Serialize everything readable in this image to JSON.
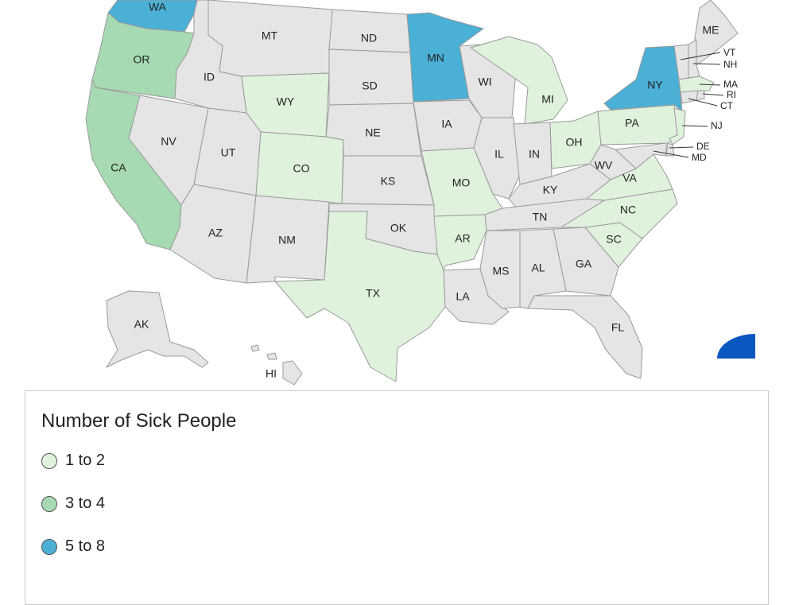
{
  "colors": {
    "none": "#e5e5e5",
    "low": "#dff3dc",
    "mid": "#a6dab2",
    "high": "#4bb0d5",
    "border": "#9a9a9a",
    "accent_widget": "#0a57c2"
  },
  "legend": {
    "title": "Number of Sick People",
    "items": [
      {
        "label": "1 to 2",
        "color": "#dff3dc"
      },
      {
        "label": "3 to 4",
        "color": "#a6dab2"
      },
      {
        "label": "5 to 8",
        "color": "#4bb0d5"
      }
    ]
  },
  "states": {
    "WA": {
      "label": "WA",
      "bin": "high"
    },
    "OR": {
      "label": "OR",
      "bin": "mid"
    },
    "CA": {
      "label": "CA",
      "bin": "mid"
    },
    "ID": {
      "label": "ID",
      "bin": "none"
    },
    "NV": {
      "label": "NV",
      "bin": "none"
    },
    "MT": {
      "label": "MT",
      "bin": "none"
    },
    "WY": {
      "label": "WY",
      "bin": "low"
    },
    "UT": {
      "label": "UT",
      "bin": "none"
    },
    "AZ": {
      "label": "AZ",
      "bin": "none"
    },
    "CO": {
      "label": "CO",
      "bin": "low"
    },
    "NM": {
      "label": "NM",
      "bin": "none"
    },
    "ND": {
      "label": "ND",
      "bin": "none"
    },
    "SD": {
      "label": "SD",
      "bin": "none"
    },
    "NE": {
      "label": "NE",
      "bin": "none"
    },
    "KS": {
      "label": "KS",
      "bin": "none"
    },
    "OK": {
      "label": "OK",
      "bin": "none"
    },
    "TX": {
      "label": "TX",
      "bin": "low"
    },
    "MN": {
      "label": "MN",
      "bin": "high"
    },
    "IA": {
      "label": "IA",
      "bin": "none"
    },
    "MO": {
      "label": "MO",
      "bin": "low"
    },
    "AR": {
      "label": "AR",
      "bin": "low"
    },
    "LA": {
      "label": "LA",
      "bin": "none"
    },
    "WI": {
      "label": "WI",
      "bin": "none"
    },
    "IL": {
      "label": "IL",
      "bin": "none"
    },
    "MI": {
      "label": "MI",
      "bin": "low"
    },
    "IN": {
      "label": "IN",
      "bin": "none"
    },
    "OH": {
      "label": "OH",
      "bin": "low"
    },
    "KY": {
      "label": "KY",
      "bin": "none"
    },
    "TN": {
      "label": "TN",
      "bin": "none"
    },
    "MS": {
      "label": "MS",
      "bin": "none"
    },
    "AL": {
      "label": "AL",
      "bin": "none"
    },
    "GA": {
      "label": "GA",
      "bin": "none"
    },
    "FL": {
      "label": "FL",
      "bin": "none"
    },
    "SC": {
      "label": "SC",
      "bin": "low"
    },
    "NC": {
      "label": "NC",
      "bin": "low"
    },
    "VA": {
      "label": "VA",
      "bin": "low"
    },
    "WV": {
      "label": "WV",
      "bin": "none"
    },
    "PA": {
      "label": "PA",
      "bin": "low"
    },
    "NY": {
      "label": "NY",
      "bin": "high"
    },
    "ME": {
      "label": "ME",
      "bin": "none"
    },
    "VT": {
      "label": "VT",
      "bin": "none"
    },
    "NH": {
      "label": "NH",
      "bin": "none"
    },
    "MA": {
      "label": "MA",
      "bin": "low"
    },
    "RI": {
      "label": "RI",
      "bin": "none"
    },
    "CT": {
      "label": "CT",
      "bin": "none"
    },
    "NJ": {
      "label": "NJ",
      "bin": "low"
    },
    "DE": {
      "label": "DE",
      "bin": "none"
    },
    "MD": {
      "label": "MD",
      "bin": "none"
    },
    "AK": {
      "label": "AK",
      "bin": "none"
    },
    "HI": {
      "label": "HI",
      "bin": "none"
    }
  }
}
